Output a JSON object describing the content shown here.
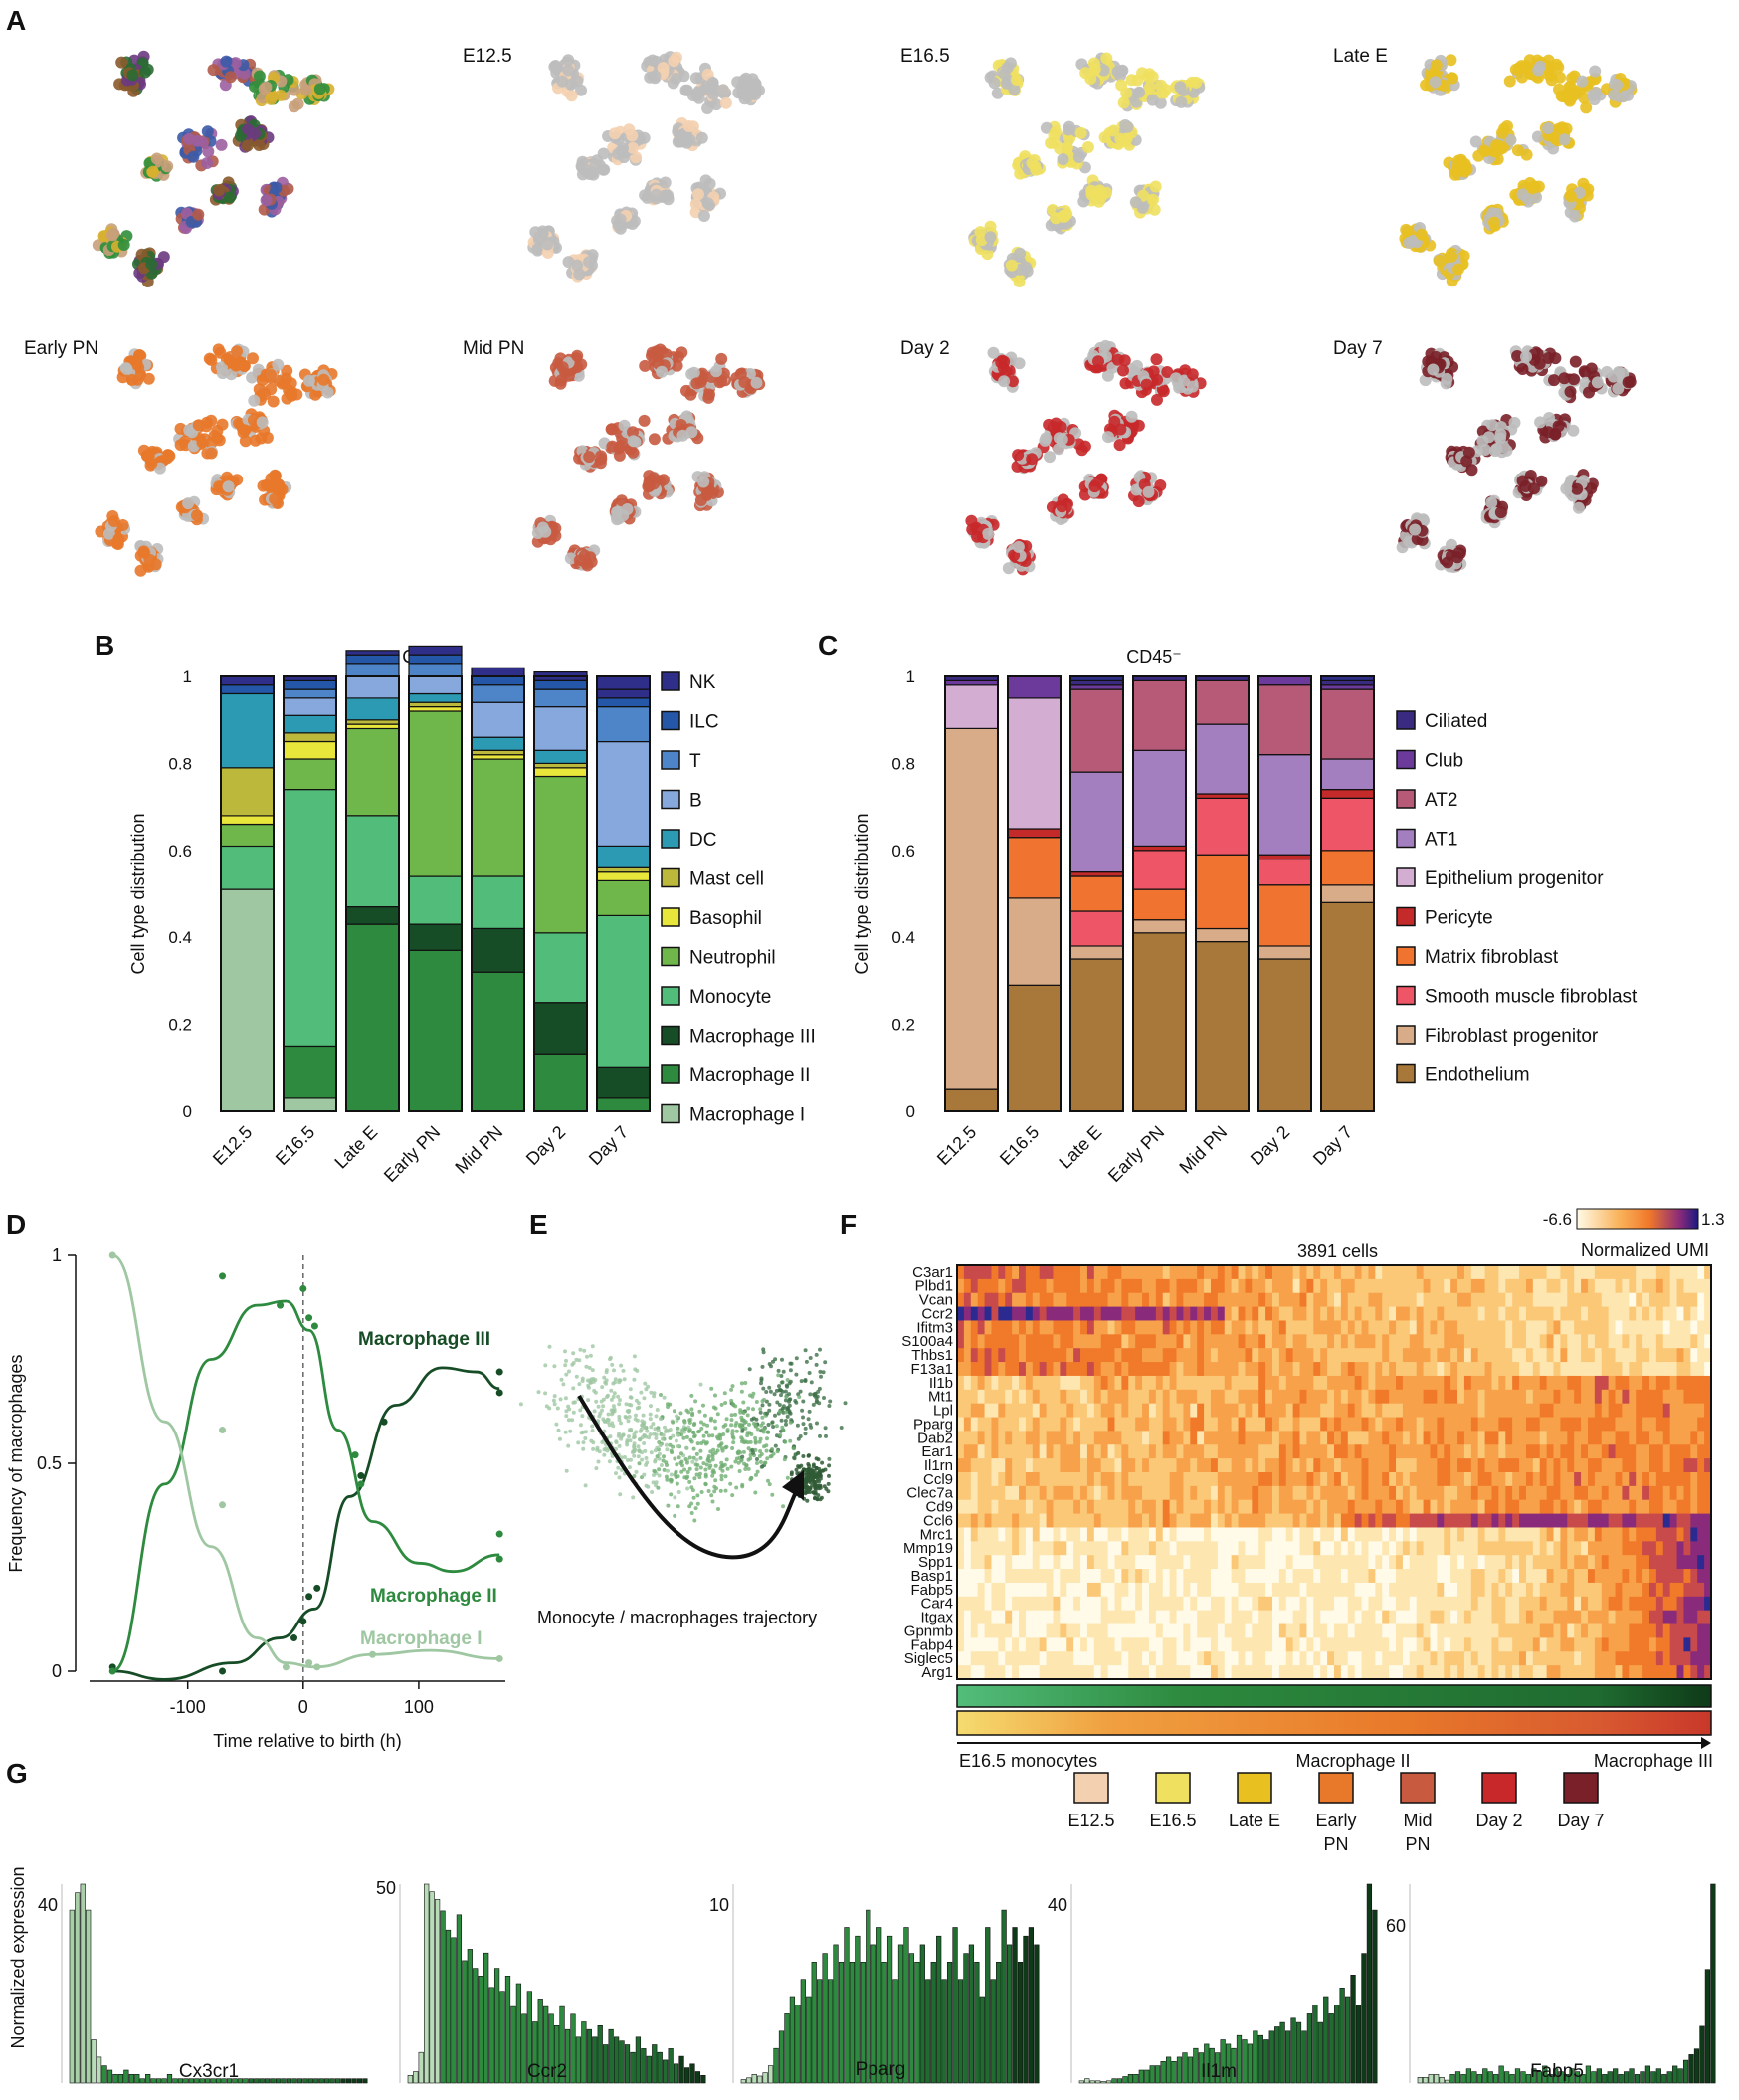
{
  "panelA": {
    "letter": "A",
    "timepoints": [
      "",
      "E12.5",
      "E16.5",
      "Late E",
      "Early PN",
      "Mid PN",
      "Day 2",
      "Day 7"
    ],
    "clusterColors": [
      "#8a5a2b",
      "#3b5ba8",
      "#2f8f3c",
      "#2a6b33",
      "#b05a4a",
      "#c8a07a",
      "#6b3a80",
      "#9c5fa0",
      "#d8b030"
    ],
    "timepointColors": [
      "#f3d0b0",
      "#f0e060",
      "#e8c020",
      "#e8782a",
      "#c85a40",
      "#c8282a",
      "#7a2028"
    ]
  },
  "panelB": {
    "letter": "B",
    "chart_data": {
      "type": "bar",
      "stacked": true,
      "title": "CD45⁺",
      "ylabel": "Cell type distribution",
      "yticks": [
        "0",
        "0.2",
        "0.4",
        "0.6",
        "0.8",
        "1"
      ],
      "ylim": [
        0,
        1
      ],
      "categories": [
        "E12.5",
        "E16.5",
        "Late E",
        "Early PN",
        "Mid PN",
        "Day 2",
        "Day 7"
      ],
      "series": [
        {
          "name": "Macrophage I",
          "color": "#9fc7a2",
          "values": [
            0.51,
            0.03,
            0.0,
            0.0,
            0.0,
            0.0,
            0.0
          ]
        },
        {
          "name": "Macrophage II",
          "color": "#2d8a3e",
          "values": [
            0.0,
            0.12,
            0.43,
            0.37,
            0.32,
            0.13,
            0.03
          ]
        },
        {
          "name": "Macrophage III",
          "color": "#174d26",
          "values": [
            0.0,
            0.0,
            0.04,
            0.06,
            0.1,
            0.12,
            0.07
          ]
        },
        {
          "name": "Monocyte",
          "color": "#52bd7a",
          "values": [
            0.1,
            0.59,
            0.21,
            0.11,
            0.12,
            0.16,
            0.35
          ]
        },
        {
          "name": "Neutrophil",
          "color": "#6fb74b",
          "values": [
            0.05,
            0.07,
            0.2,
            0.38,
            0.27,
            0.36,
            0.08
          ]
        },
        {
          "name": "Basophil",
          "color": "#e8e63a",
          "values": [
            0.02,
            0.04,
            0.01,
            0.01,
            0.01,
            0.02,
            0.02
          ]
        },
        {
          "name": "Mast cell",
          "color": "#bcb83c",
          "values": [
            0.11,
            0.02,
            0.01,
            0.01,
            0.01,
            0.01,
            0.01
          ]
        },
        {
          "name": "DC",
          "color": "#2b9ab2",
          "values": [
            0.17,
            0.04,
            0.05,
            0.02,
            0.03,
            0.03,
            0.05
          ]
        },
        {
          "name": "B",
          "color": "#86a8dc",
          "values": [
            0.0,
            0.04,
            0.05,
            0.04,
            0.08,
            0.1,
            0.24
          ]
        },
        {
          "name": "T",
          "color": "#4e84c8",
          "values": [
            0.0,
            0.02,
            0.03,
            0.03,
            0.04,
            0.04,
            0.08
          ]
        },
        {
          "name": "ILC",
          "color": "#2457a8",
          "values": [
            0.02,
            0.02,
            0.02,
            0.02,
            0.02,
            0.02,
            0.02
          ]
        },
        {
          "name": "NK",
          "color": "#2f2e88",
          "values": [
            0.02,
            0.01,
            0.01,
            0.02,
            0.02,
            0.02,
            0.02
          ]
        }
      ]
    }
  },
  "panelC": {
    "letter": "C",
    "chart_data": {
      "type": "bar",
      "stacked": true,
      "title": "CD45⁻",
      "ylabel": "Cell type distribution",
      "yticks": [
        "0",
        "0.2",
        "0.4",
        "0.6",
        "0.8",
        "1"
      ],
      "ylim": [
        0,
        1
      ],
      "categories": [
        "E12.5",
        "E16.5",
        "Late E",
        "Early PN",
        "Mid PN",
        "Day 2",
        "Day 7"
      ],
      "series": [
        {
          "name": "Endothelium",
          "color": "#a8773a",
          "values": [
            0.05,
            0.29,
            0.35,
            0.41,
            0.39,
            0.35,
            0.48
          ]
        },
        {
          "name": "Fibroblast progenitor",
          "color": "#d8ac88",
          "values": [
            0.83,
            0.2,
            0.03,
            0.03,
            0.03,
            0.03,
            0.04
          ]
        },
        {
          "name": "Smooth muscle fibroblast",
          "color": "#ee5566",
          "values": [
            0.0,
            0.0,
            0.08,
            0.0,
            0.0,
            0.0,
            0.0
          ]
        },
        {
          "name": "Matrix fibroblast",
          "color": "#f07430",
          "values": [
            0.0,
            0.14,
            0.08,
            0.07,
            0.17,
            0.14,
            0.08
          ]
        },
        {
          "name": "Smooth muscle fibroblast",
          "color": "#ee5566",
          "values": [
            0.0,
            0.0,
            0.0,
            0.09,
            0.13,
            0.06,
            0.12
          ]
        },
        {
          "name": "Pericyte",
          "color": "#c42a2a",
          "values": [
            0.0,
            0.02,
            0.01,
            0.01,
            0.01,
            0.01,
            0.02
          ]
        },
        {
          "name": "AT1",
          "color": "#a37fc0",
          "values": [
            0.0,
            0.0,
            0.23,
            0.22,
            0.16,
            0.23,
            0.07
          ]
        },
        {
          "name": "Epithelium progenitor",
          "color": "#d3aed2",
          "values": [
            0.1,
            0.3,
            0.0,
            0.0,
            0.0,
            0.0,
            0.0
          ]
        },
        {
          "name": "AT2",
          "color": "#b65a78",
          "values": [
            0.0,
            0.0,
            0.19,
            0.16,
            0.1,
            0.16,
            0.16
          ]
        },
        {
          "name": "Club",
          "color": "#6b3a9a",
          "values": [
            0.01,
            0.05,
            0.01,
            0.0,
            0.0,
            0.02,
            0.01
          ]
        },
        {
          "name": "Ciliated",
          "color": "#3a2a80",
          "values": [
            0.01,
            0.0,
            0.01,
            0.01,
            0.01,
            0.0,
            0.01
          ]
        }
      ],
      "legend": [
        "Ciliated",
        "Club",
        "AT2",
        "AT1",
        "Epithelium progenitor",
        "Pericyte",
        "Matrix fibroblast",
        "Smooth muscle fibroblast",
        "Fibroblast progenitor",
        "Endothelium"
      ],
      "legendColors": [
        "#3a2a80",
        "#6b3a9a",
        "#b65a78",
        "#a37fc0",
        "#d3aed2",
        "#c42a2a",
        "#f07430",
        "#ee5566",
        "#d8ac88",
        "#a8773a"
      ]
    }
  },
  "panelD": {
    "letter": "D",
    "chart_data": {
      "type": "line",
      "xlabel": "Time relative to birth (h)",
      "ylabel": "Frequency of macrophages",
      "xticks": [
        "-100",
        "0",
        "100"
      ],
      "yticks": [
        "0",
        "0.5",
        "1"
      ],
      "xlim": [
        -185,
        175
      ],
      "ylim": [
        0,
        1
      ],
      "series": [
        {
          "name": "Macrophage III",
          "color": "#174d26",
          "curve": [
            [
              -165,
              0.0
            ],
            [
              -120,
              -0.02
            ],
            [
              -60,
              0.02
            ],
            [
              -20,
              0.08
            ],
            [
              10,
              0.15
            ],
            [
              40,
              0.42
            ],
            [
              80,
              0.64
            ],
            [
              120,
              0.73
            ],
            [
              150,
              0.72
            ],
            [
              170,
              0.68
            ]
          ],
          "points": [
            [
              -165,
              0.01
            ],
            [
              -70,
              0.0
            ],
            [
              -8,
              0.08
            ],
            [
              0,
              0.12
            ],
            [
              5,
              0.18
            ],
            [
              12,
              0.2
            ],
            [
              50,
              0.47
            ],
            [
              70,
              0.6
            ],
            [
              170,
              0.72
            ],
            [
              170,
              0.67
            ]
          ]
        },
        {
          "name": "Macrophage II",
          "color": "#2d8a3e",
          "curve": [
            [
              -165,
              0.0
            ],
            [
              -120,
              0.45
            ],
            [
              -80,
              0.75
            ],
            [
              -40,
              0.88
            ],
            [
              -15,
              0.89
            ],
            [
              5,
              0.82
            ],
            [
              30,
              0.58
            ],
            [
              60,
              0.36
            ],
            [
              100,
              0.26
            ],
            [
              130,
              0.24
            ],
            [
              170,
              0.28
            ]
          ],
          "points": [
            [
              -165,
              0.0
            ],
            [
              -70,
              0.95
            ],
            [
              -20,
              0.88
            ],
            [
              0,
              0.92
            ],
            [
              5,
              0.85
            ],
            [
              10,
              0.83
            ],
            [
              45,
              0.52
            ],
            [
              50,
              0.45
            ],
            [
              170,
              0.33
            ],
            [
              170,
              0.27
            ]
          ]
        },
        {
          "name": "Macrophage I",
          "color": "#9fc7a2",
          "curve": [
            [
              -165,
              1.0
            ],
            [
              -120,
              0.6
            ],
            [
              -80,
              0.3
            ],
            [
              -40,
              0.08
            ],
            [
              -15,
              0.02
            ],
            [
              10,
              0.01
            ],
            [
              60,
              0.04
            ],
            [
              110,
              0.05
            ],
            [
              170,
              0.03
            ]
          ],
          "points": [
            [
              -165,
              1.0
            ],
            [
              -70,
              0.58
            ],
            [
              -70,
              0.4
            ],
            [
              -15,
              0.01
            ],
            [
              5,
              0.02
            ],
            [
              12,
              0.01
            ],
            [
              60,
              0.04
            ],
            [
              170,
              0.03
            ]
          ]
        }
      ],
      "labels": [
        "Macrophage III",
        "Macrophage II",
        "Macrophage I"
      ]
    }
  },
  "panelE": {
    "letter": "E",
    "caption": "Monocyte / macrophages trajectory"
  },
  "panelF": {
    "letter": "F",
    "title": "3891 cells",
    "scaleMin": "-6.6",
    "scaleMax": "1.3",
    "scaleLabel": "Normalized UMI",
    "genes": [
      "C3ar1",
      "Plbd1",
      "Vcan",
      "Ccr2",
      "Ifitm3",
      "S100a4",
      "Thbs1",
      "F13a1",
      "Il1b",
      "Mt1",
      "Lpl",
      "Pparg",
      "Dab2",
      "Ear1",
      "Il1rn",
      "Ccl9",
      "Clec7a",
      "Cd9",
      "Ccl6",
      "Mrc1",
      "Mmp19",
      "Spp1",
      "Basp1",
      "Fabp5",
      "Car4",
      "Itgax",
      "Gpnmb",
      "Fabp4",
      "Siglec5",
      "Arg1"
    ],
    "axisLabels": [
      "E16.5 monocytes",
      "Macrophage II",
      "Macrophage III"
    ],
    "timeLegend": [
      "E12.5",
      "E16.5",
      "Late E",
      "Early PN",
      "Mid PN",
      "Day 2",
      "Day 7"
    ],
    "timeLegendLines": [
      [
        "E12.5"
      ],
      [
        "E16.5"
      ],
      [
        "Late E"
      ],
      [
        "Early",
        "PN"
      ],
      [
        "Mid",
        "PN"
      ],
      [
        "Day 2"
      ],
      [
        "Day 7"
      ]
    ]
  },
  "panelG": {
    "letter": "G",
    "ylabel": "Normalized expression",
    "chart_data": [
      {
        "type": "bar",
        "gene": "Cx3cr1",
        "ytick": "40",
        "ymax": 46,
        "values": [
          40,
          44,
          46,
          40,
          10,
          6,
          4,
          3,
          2,
          2,
          3,
          2,
          2,
          1,
          2,
          1,
          1,
          1,
          2,
          1,
          1,
          1,
          1,
          1,
          1,
          1,
          1,
          1,
          1,
          1,
          1,
          1,
          1,
          1,
          1,
          1,
          1,
          1,
          1,
          1,
          1,
          1,
          1,
          1,
          1,
          1,
          1,
          1,
          1,
          1,
          1,
          1,
          1,
          1,
          1
        ]
      },
      {
        "type": "bar",
        "gene": "Ccr2",
        "ytick": "50",
        "ymax": 52,
        "values": [
          2,
          3,
          8,
          52,
          50,
          48,
          45,
          40,
          38,
          44,
          32,
          35,
          30,
          28,
          34,
          25,
          30,
          24,
          28,
          20,
          26,
          18,
          24,
          16,
          22,
          20,
          18,
          15,
          20,
          14,
          18,
          12,
          16,
          14,
          12,
          15,
          10,
          14,
          12,
          11,
          10,
          8,
          12,
          9,
          7,
          10,
          8,
          6,
          9,
          5,
          7,
          4,
          5,
          3,
          2
        ]
      },
      {
        "type": "bar",
        "gene": "Pparg",
        "ytick": "10",
        "ymax": 11.5,
        "values": [
          0.2,
          0.3,
          0.5,
          0.4,
          0.6,
          1,
          2,
          3,
          4,
          5,
          4.5,
          6,
          5,
          7,
          6,
          7.5,
          6,
          8,
          7,
          9,
          7,
          8.5,
          7,
          10,
          8,
          9,
          7,
          8.5,
          6,
          8,
          9,
          7.5,
          7,
          8,
          6,
          7,
          8.5,
          6,
          7,
          9,
          6,
          7.5,
          8,
          7,
          5,
          9,
          6,
          7,
          10,
          8,
          9,
          7,
          8.5,
          9,
          8
        ]
      },
      {
        "type": "bar",
        "gene": "Il1m",
        "ytick": "40",
        "ymax": 46,
        "values": [
          0.5,
          1,
          0.5,
          0.5,
          0.3,
          0.5,
          1,
          1,
          1.5,
          2,
          2,
          3,
          3,
          4,
          4,
          5,
          6,
          5,
          6,
          7,
          6,
          8,
          7,
          9,
          8,
          7,
          10,
          9,
          8,
          11,
          10,
          9,
          12,
          11,
          10,
          12,
          13,
          14,
          12,
          15,
          14,
          12,
          16,
          18,
          14,
          20,
          16,
          18,
          22,
          20,
          25,
          18,
          30,
          46,
          40
        ]
      },
      {
        "type": "bar",
        "gene": "Fabp5",
        "ytick": "60",
        "ymax": 70,
        "values": [
          2,
          2,
          3,
          3,
          2,
          1,
          3,
          4,
          3,
          5,
          4,
          3,
          5,
          4,
          3,
          6,
          4,
          3,
          5,
          4,
          3,
          5,
          4,
          6,
          3,
          5,
          4,
          3,
          5,
          4,
          3,
          6,
          4,
          5,
          3,
          4,
          5,
          3,
          4,
          5,
          3,
          4,
          6,
          4,
          5,
          3,
          4,
          6,
          5,
          8,
          10,
          12,
          20,
          40,
          70
        ]
      }
    ]
  }
}
